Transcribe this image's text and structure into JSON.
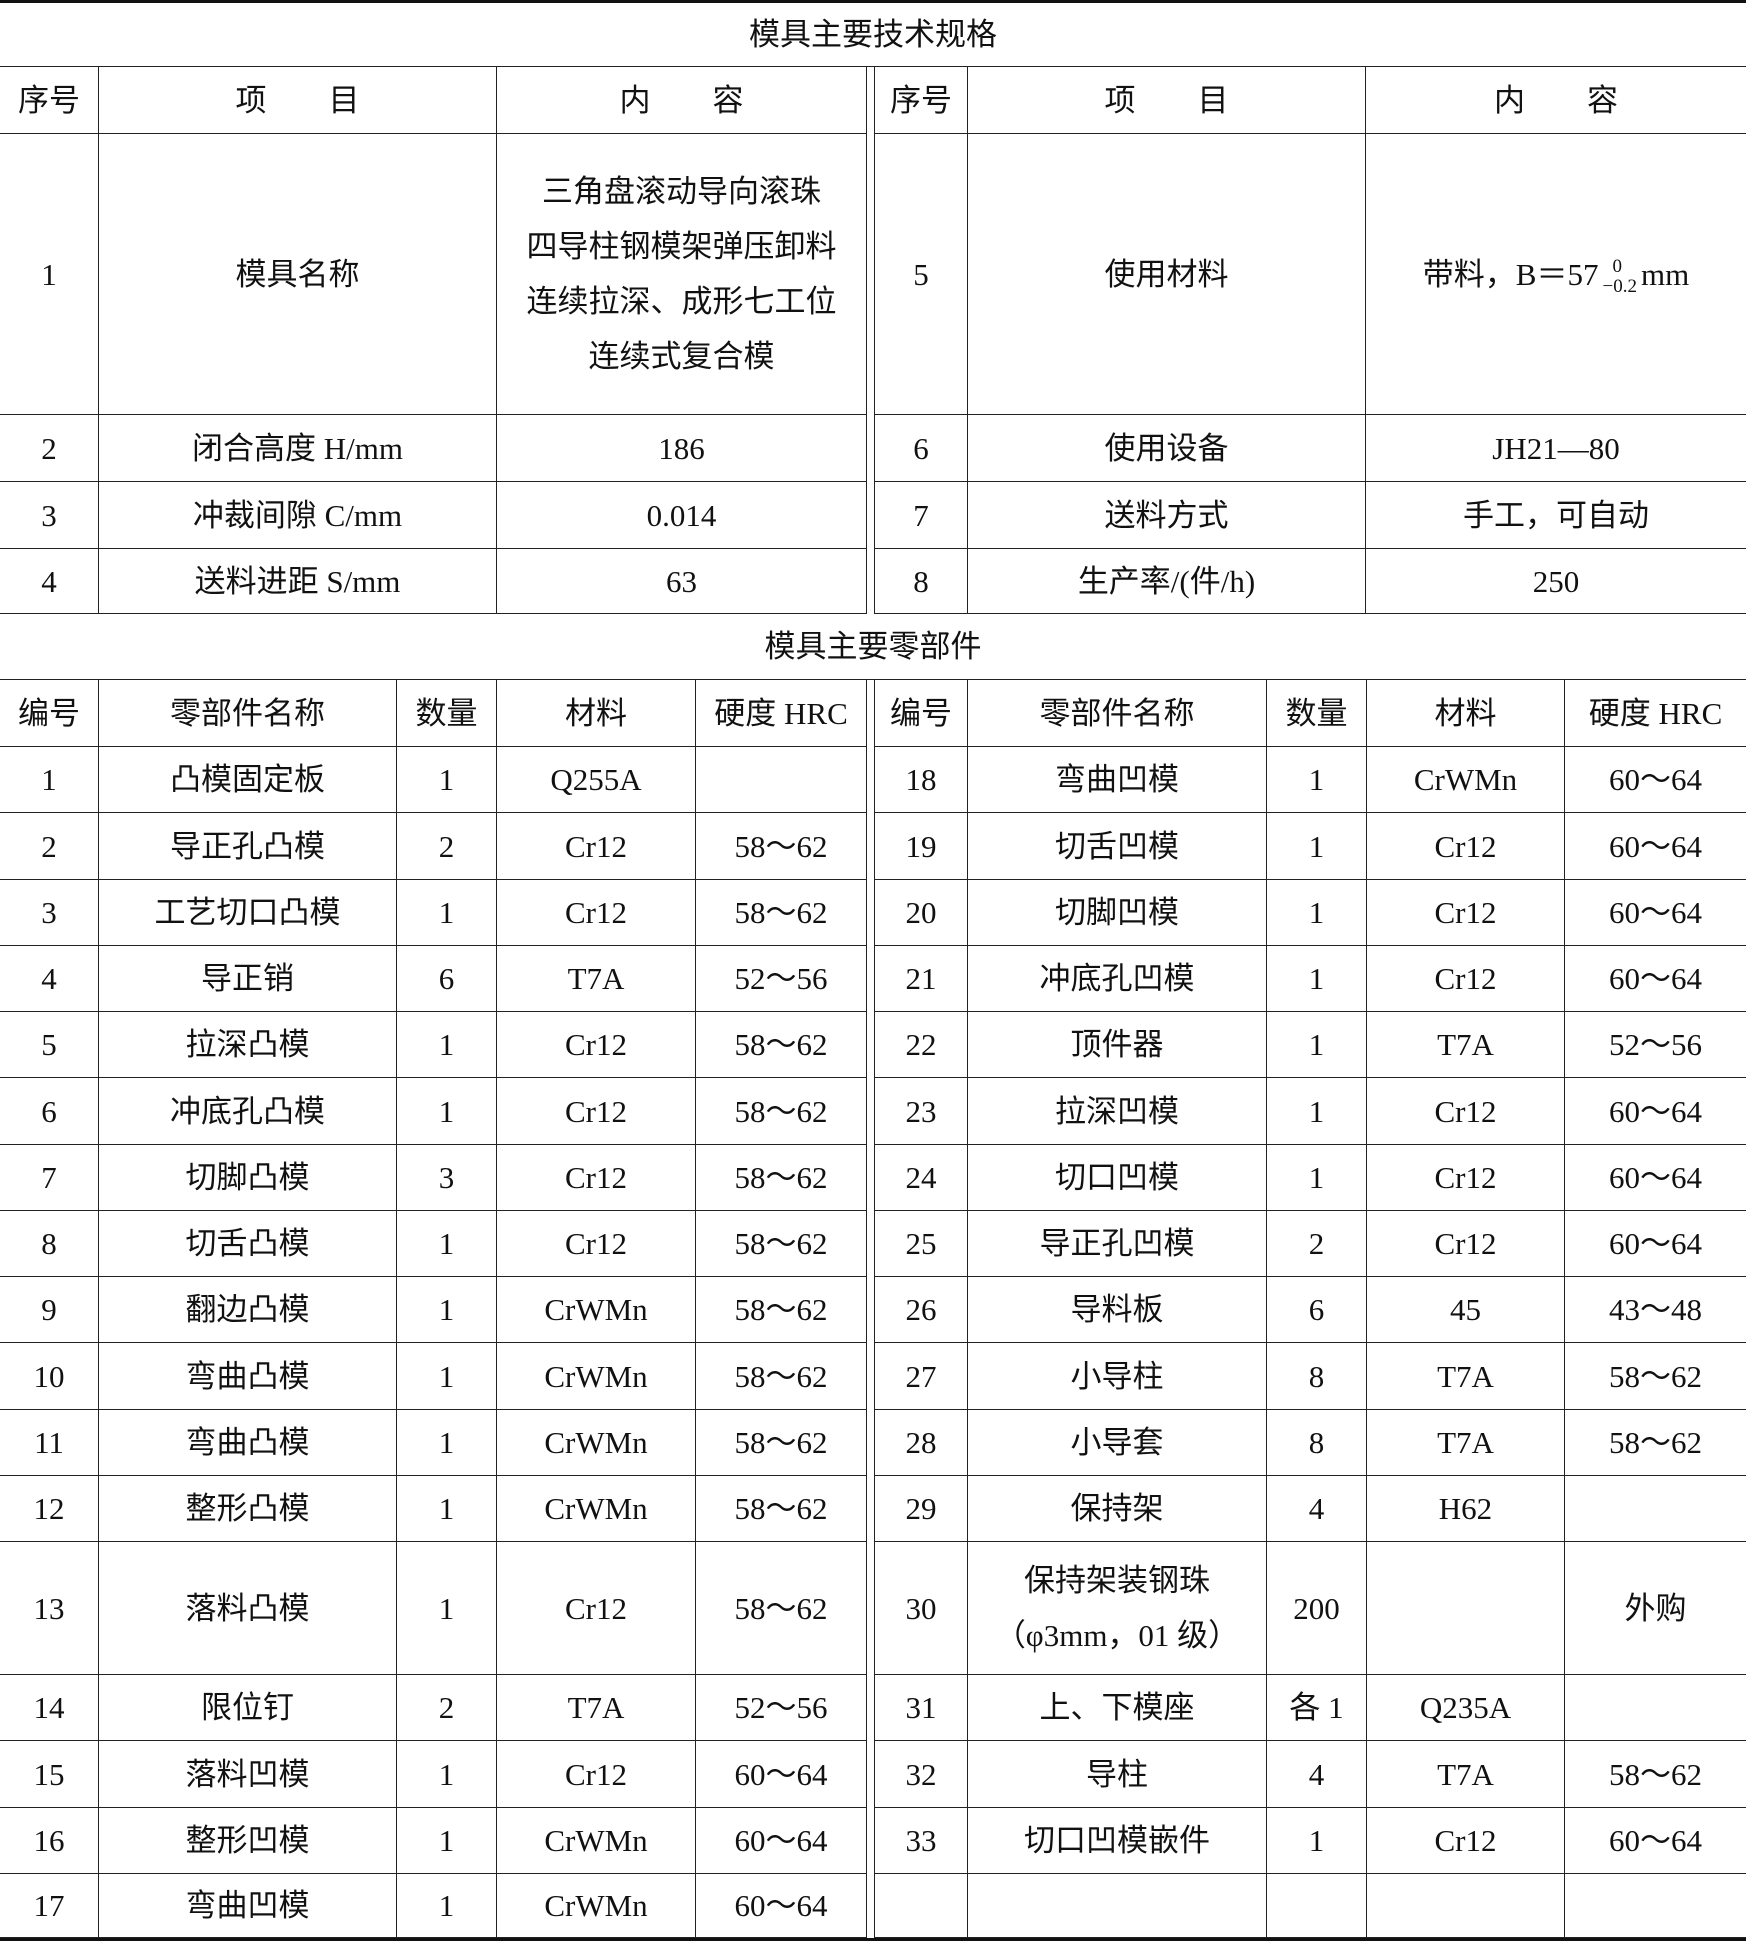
{
  "spec": {
    "title": "模具主要技术规格",
    "headers": [
      "序号",
      "项　　目",
      "内　　容",
      "序号",
      "项　　目",
      "内　　容"
    ],
    "rows": [
      [
        "1",
        "模具名称",
        [
          "三角盘滚动导向滚珠",
          "四导柱钢模架弹压卸料",
          "连续拉深、成形七工位",
          "连续式复合模"
        ],
        "5",
        "使用材料",
        {
          "text": "带料，B＝57",
          "upper": "0",
          "lower": "−0.2",
          "unit": "mm"
        }
      ],
      [
        "2",
        "闭合高度 H/mm",
        "186",
        "6",
        "使用设备",
        "JH21—80"
      ],
      [
        "3",
        "冲裁间隙 C/mm",
        "0.014",
        "7",
        "送料方式",
        "手工，可自动"
      ],
      [
        "4",
        "送料进距 S/mm",
        "63",
        "8",
        "生产率/(件/h)",
        "250"
      ]
    ]
  },
  "parts": {
    "title": "模具主要零部件",
    "headers": [
      "编号",
      "零部件名称",
      "数量",
      "材料",
      "硬度 HRC",
      "编号",
      "零部件名称",
      "数量",
      "材料",
      "硬度 HRC"
    ],
    "rows": [
      [
        "1",
        "凸模固定板",
        "1",
        "Q255A",
        null,
        "18",
        "弯曲凹模",
        "1",
        "CrWMn",
        "60～64"
      ],
      [
        "2",
        "导正孔凸模",
        "2",
        "Cr12",
        "58～62",
        "19",
        "切舌凹模",
        "1",
        "Cr12",
        "60～64"
      ],
      [
        "3",
        "工艺切口凸模",
        "1",
        "Cr12",
        "58～62",
        "20",
        "切脚凹模",
        "1",
        "Cr12",
        "60～64"
      ],
      [
        "4",
        "导正销",
        "6",
        "T7A",
        "52～56",
        "21",
        "冲底孔凹模",
        "1",
        "Cr12",
        "60～64"
      ],
      [
        "5",
        "拉深凸模",
        "1",
        "Cr12",
        "58～62",
        "22",
        "顶件器",
        "1",
        "T7A",
        "52～56"
      ],
      [
        "6",
        "冲底孔凸模",
        "1",
        "Cr12",
        "58～62",
        "23",
        "拉深凹模",
        "1",
        "Cr12",
        "60～64"
      ],
      [
        "7",
        "切脚凸模",
        "3",
        "Cr12",
        "58～62",
        "24",
        "切口凹模",
        "1",
        "Cr12",
        "60～64"
      ],
      [
        "8",
        "切舌凸模",
        "1",
        "Cr12",
        "58～62",
        "25",
        "导正孔凹模",
        "2",
        "Cr12",
        "60～64"
      ],
      [
        "9",
        "翻边凸模",
        "1",
        "CrWMn",
        "58～62",
        "26",
        "导料板",
        "6",
        "45",
        "43～48"
      ],
      [
        "10",
        "弯曲凸模",
        "1",
        "CrWMn",
        "58～62",
        "27",
        "小导柱",
        "8",
        "T7A",
        "58～62"
      ],
      [
        "11",
        "弯曲凸模",
        "1",
        "CrWMn",
        "58～62",
        "28",
        "小导套",
        "8",
        "T7A",
        "58～62"
      ],
      [
        "12",
        "整形凸模",
        "1",
        "CrWMn",
        "58～62",
        "29",
        "保持架",
        "4",
        "H62",
        null
      ],
      [
        "13",
        "落料凸模",
        "1",
        "Cr12",
        "58～62",
        "30",
        [
          "保持架装钢珠",
          "（φ3mm，01 级）"
        ],
        "200",
        null,
        "外购"
      ],
      [
        "14",
        "限位钉",
        "2",
        "T7A",
        "52～56",
        "31",
        "上、下模座",
        "各 1",
        "Q235A",
        null
      ],
      [
        "15",
        "落料凹模",
        "1",
        "Cr12",
        "60～64",
        "32",
        "导柱",
        "4",
        "T7A",
        "58～62"
      ],
      [
        "16",
        "整形凹模",
        "1",
        "CrWMn",
        "60～64",
        "33",
        "切口凹模嵌件",
        "1",
        "Cr12",
        "60～64"
      ],
      [
        "17",
        "弯曲凹模",
        "1",
        "CrWMn",
        "60～64",
        null,
        null,
        null,
        null,
        null
      ]
    ]
  }
}
